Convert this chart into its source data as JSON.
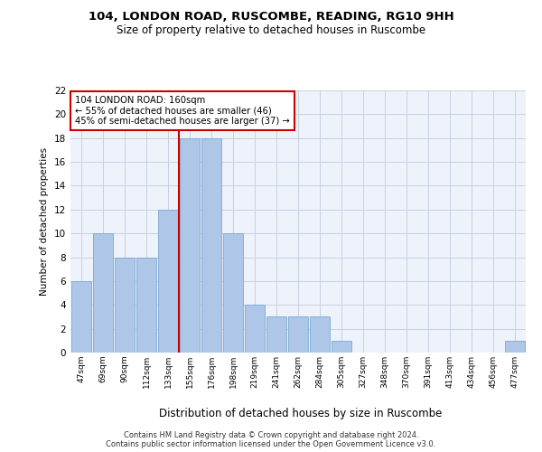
{
  "title1": "104, LONDON ROAD, RUSCOMBE, READING, RG10 9HH",
  "title2": "Size of property relative to detached houses in Ruscombe",
  "xlabel": "Distribution of detached houses by size in Ruscombe",
  "ylabel": "Number of detached properties",
  "categories": [
    "47sqm",
    "69sqm",
    "90sqm",
    "112sqm",
    "133sqm",
    "155sqm",
    "176sqm",
    "198sqm",
    "219sqm",
    "241sqm",
    "262sqm",
    "284sqm",
    "305sqm",
    "327sqm",
    "348sqm",
    "370sqm",
    "391sqm",
    "413sqm",
    "434sqm",
    "456sqm",
    "477sqm"
  ],
  "values": [
    6,
    10,
    8,
    8,
    12,
    18,
    18,
    10,
    4,
    3,
    3,
    3,
    1,
    0,
    0,
    0,
    0,
    0,
    0,
    0,
    1
  ],
  "bar_color": "#aec6e8",
  "bar_edge_color": "#7aaad0",
  "marker_line_color": "#cc0000",
  "annotation_line1": "104 LONDON ROAD: 160sqm",
  "annotation_line2": "← 55% of detached houses are smaller (46)",
  "annotation_line3": "45% of semi-detached houses are larger (37) →",
  "annotation_box_color": "#ffffff",
  "annotation_box_edge": "#cc0000",
  "ylim": [
    0,
    22
  ],
  "yticks": [
    0,
    2,
    4,
    6,
    8,
    10,
    12,
    14,
    16,
    18,
    20,
    22
  ],
  "footer1": "Contains HM Land Registry data © Crown copyright and database right 2024.",
  "footer2": "Contains public sector information licensed under the Open Government Licence v3.0.",
  "bg_color": "#eef2fb",
  "grid_color": "#c8d0e0",
  "fig_bg": "#ffffff"
}
